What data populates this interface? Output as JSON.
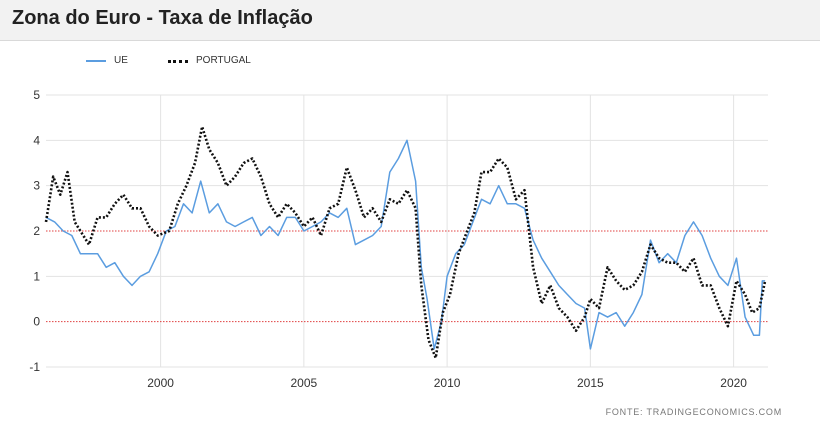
{
  "header": {
    "title": "Zona do Euro - Taxa de Inflação"
  },
  "source": "FONTE: TRADINGECONOMICS.COM",
  "colors": {
    "ue": "#5b9de0",
    "portugal": "#111111",
    "refline": "#e04040",
    "grid": "#e3e3e3"
  },
  "chart_data": {
    "type": "line",
    "title": "Zona do Euro - Taxa de Inflação",
    "xlabel": "",
    "ylabel": "",
    "xlim": [
      1996.0,
      2021.2
    ],
    "ylim": [
      -1,
      5
    ],
    "yticks": [
      5,
      4,
      3,
      2,
      1,
      0,
      -1
    ],
    "xticks": [
      2000,
      2005,
      2010,
      2015,
      2020
    ],
    "reference_lines": [
      2,
      0
    ],
    "grid": true,
    "legend_position": "top-left",
    "series": [
      {
        "name": "UE",
        "key": "ue",
        "points": [
          [
            1996.0,
            2.3
          ],
          [
            1996.3,
            2.2
          ],
          [
            1996.6,
            2.0
          ],
          [
            1996.9,
            1.9
          ],
          [
            1997.2,
            1.5
          ],
          [
            1997.5,
            1.5
          ],
          [
            1997.8,
            1.5
          ],
          [
            1998.1,
            1.2
          ],
          [
            1998.4,
            1.3
          ],
          [
            1998.7,
            1.0
          ],
          [
            1999.0,
            0.8
          ],
          [
            1999.3,
            1.0
          ],
          [
            1999.6,
            1.1
          ],
          [
            1999.9,
            1.5
          ],
          [
            2000.2,
            2.0
          ],
          [
            2000.5,
            2.1
          ],
          [
            2000.8,
            2.6
          ],
          [
            2001.1,
            2.4
          ],
          [
            2001.4,
            3.1
          ],
          [
            2001.7,
            2.4
          ],
          [
            2002.0,
            2.6
          ],
          [
            2002.3,
            2.2
          ],
          [
            2002.6,
            2.1
          ],
          [
            2002.9,
            2.2
          ],
          [
            2003.2,
            2.3
          ],
          [
            2003.5,
            1.9
          ],
          [
            2003.8,
            2.1
          ],
          [
            2004.1,
            1.9
          ],
          [
            2004.4,
            2.3
          ],
          [
            2004.7,
            2.3
          ],
          [
            2005.0,
            2.0
          ],
          [
            2005.3,
            2.1
          ],
          [
            2005.6,
            2.2
          ],
          [
            2005.9,
            2.4
          ],
          [
            2006.2,
            2.3
          ],
          [
            2006.5,
            2.5
          ],
          [
            2006.8,
            1.7
          ],
          [
            2007.1,
            1.8
          ],
          [
            2007.4,
            1.9
          ],
          [
            2007.7,
            2.1
          ],
          [
            2008.0,
            3.3
          ],
          [
            2008.3,
            3.6
          ],
          [
            2008.6,
            4.0
          ],
          [
            2008.9,
            3.1
          ],
          [
            2009.1,
            1.2
          ],
          [
            2009.3,
            0.5
          ],
          [
            2009.55,
            -0.6
          ],
          [
            2009.8,
            0.0
          ],
          [
            2010.0,
            1.0
          ],
          [
            2010.3,
            1.5
          ],
          [
            2010.6,
            1.7
          ],
          [
            2010.9,
            2.2
          ],
          [
            2011.2,
            2.7
          ],
          [
            2011.5,
            2.6
          ],
          [
            2011.8,
            3.0
          ],
          [
            2012.1,
            2.6
          ],
          [
            2012.4,
            2.6
          ],
          [
            2012.7,
            2.5
          ],
          [
            2013.0,
            1.8
          ],
          [
            2013.3,
            1.4
          ],
          [
            2013.6,
            1.1
          ],
          [
            2013.9,
            0.8
          ],
          [
            2014.2,
            0.6
          ],
          [
            2014.5,
            0.4
          ],
          [
            2014.8,
            0.3
          ],
          [
            2015.0,
            -0.6
          ],
          [
            2015.3,
            0.2
          ],
          [
            2015.6,
            0.1
          ],
          [
            2015.9,
            0.2
          ],
          [
            2016.2,
            -0.1
          ],
          [
            2016.5,
            0.2
          ],
          [
            2016.8,
            0.6
          ],
          [
            2017.1,
            1.8
          ],
          [
            2017.4,
            1.3
          ],
          [
            2017.7,
            1.5
          ],
          [
            2018.0,
            1.3
          ],
          [
            2018.3,
            1.9
          ],
          [
            2018.6,
            2.2
          ],
          [
            2018.9,
            1.9
          ],
          [
            2019.2,
            1.4
          ],
          [
            2019.5,
            1.0
          ],
          [
            2019.8,
            0.8
          ],
          [
            2020.1,
            1.4
          ],
          [
            2020.4,
            0.1
          ],
          [
            2020.7,
            -0.3
          ],
          [
            2020.9,
            -0.3
          ],
          [
            2021.0,
            0.9
          ],
          [
            2021.1,
            0.9
          ]
        ]
      },
      {
        "name": "PORTUGAL",
        "key": "portugal",
        "points": [
          [
            1996.0,
            2.2
          ],
          [
            1996.25,
            3.2
          ],
          [
            1996.5,
            2.8
          ],
          [
            1996.75,
            3.3
          ],
          [
            1997.0,
            2.2
          ],
          [
            1997.2,
            2.0
          ],
          [
            1997.5,
            1.7
          ],
          [
            1997.8,
            2.3
          ],
          [
            1998.1,
            2.3
          ],
          [
            1998.4,
            2.6
          ],
          [
            1998.7,
            2.8
          ],
          [
            1999.0,
            2.5
          ],
          [
            1999.3,
            2.5
          ],
          [
            1999.6,
            2.1
          ],
          [
            1999.9,
            1.9
          ],
          [
            2000.3,
            2.0
          ],
          [
            2000.6,
            2.6
          ],
          [
            2000.9,
            3.0
          ],
          [
            2001.2,
            3.5
          ],
          [
            2001.45,
            4.3
          ],
          [
            2001.7,
            3.8
          ],
          [
            2002.0,
            3.5
          ],
          [
            2002.3,
            3.0
          ],
          [
            2002.6,
            3.2
          ],
          [
            2002.9,
            3.5
          ],
          [
            2003.2,
            3.6
          ],
          [
            2003.5,
            3.2
          ],
          [
            2003.8,
            2.6
          ],
          [
            2004.1,
            2.3
          ],
          [
            2004.4,
            2.6
          ],
          [
            2004.7,
            2.4
          ],
          [
            2005.0,
            2.1
          ],
          [
            2005.3,
            2.3
          ],
          [
            2005.6,
            1.9
          ],
          [
            2005.9,
            2.5
          ],
          [
            2006.2,
            2.6
          ],
          [
            2006.5,
            3.4
          ],
          [
            2006.8,
            2.9
          ],
          [
            2007.1,
            2.3
          ],
          [
            2007.4,
            2.5
          ],
          [
            2007.7,
            2.2
          ],
          [
            2008.0,
            2.7
          ],
          [
            2008.3,
            2.6
          ],
          [
            2008.6,
            2.9
          ],
          [
            2008.9,
            2.5
          ],
          [
            2009.1,
            0.8
          ],
          [
            2009.35,
            -0.4
          ],
          [
            2009.6,
            -0.8
          ],
          [
            2009.85,
            0.2
          ],
          [
            2010.1,
            0.6
          ],
          [
            2010.4,
            1.5
          ],
          [
            2010.7,
            2.0
          ],
          [
            2010.95,
            2.4
          ],
          [
            2011.2,
            3.3
          ],
          [
            2011.5,
            3.3
          ],
          [
            2011.8,
            3.6
          ],
          [
            2012.1,
            3.4
          ],
          [
            2012.4,
            2.7
          ],
          [
            2012.7,
            2.9
          ],
          [
            2013.0,
            1.2
          ],
          [
            2013.3,
            0.4
          ],
          [
            2013.6,
            0.8
          ],
          [
            2013.9,
            0.3
          ],
          [
            2014.2,
            0.1
          ],
          [
            2014.5,
            -0.2
          ],
          [
            2014.8,
            0.1
          ],
          [
            2015.0,
            0.5
          ],
          [
            2015.3,
            0.3
          ],
          [
            2015.6,
            1.2
          ],
          [
            2015.9,
            0.9
          ],
          [
            2016.2,
            0.7
          ],
          [
            2016.5,
            0.8
          ],
          [
            2016.8,
            1.1
          ],
          [
            2017.1,
            1.7
          ],
          [
            2017.4,
            1.4
          ],
          [
            2017.7,
            1.3
          ],
          [
            2018.0,
            1.3
          ],
          [
            2018.3,
            1.1
          ],
          [
            2018.6,
            1.4
          ],
          [
            2018.9,
            0.8
          ],
          [
            2019.2,
            0.8
          ],
          [
            2019.5,
            0.3
          ],
          [
            2019.8,
            -0.1
          ],
          [
            2020.1,
            0.9
          ],
          [
            2020.4,
            0.6
          ],
          [
            2020.65,
            0.2
          ],
          [
            2020.9,
            0.3
          ],
          [
            2021.1,
            0.9
          ]
        ]
      }
    ]
  }
}
